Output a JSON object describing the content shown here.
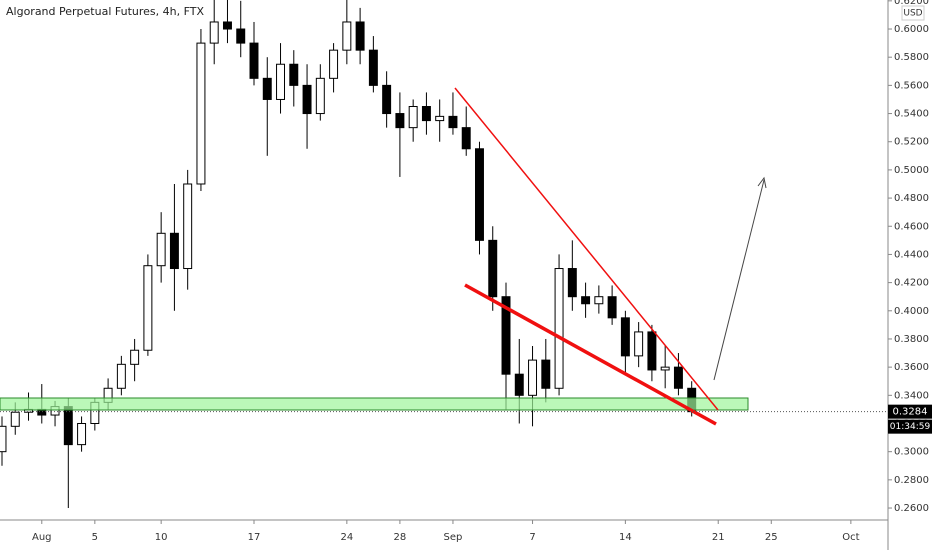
{
  "chart_data": {
    "type": "candlestick",
    "title": "Algorand Perpetual Futures, 4h, FTX",
    "currency": "USD",
    "x": [
      0,
      1,
      2,
      3,
      4,
      5,
      6,
      7,
      8,
      9,
      10,
      11,
      12,
      13,
      14,
      15,
      16,
      17,
      18,
      19,
      20,
      21,
      22,
      23,
      24,
      25,
      26,
      27,
      28,
      29,
      30,
      31,
      32,
      33,
      34,
      35,
      36,
      37,
      38,
      39,
      40,
      41,
      42,
      43,
      44,
      45,
      46,
      47,
      48,
      49,
      50,
      51,
      52
    ],
    "open": [
      0.3,
      0.318,
      0.328,
      0.33,
      0.326,
      0.332,
      0.305,
      0.32,
      0.335,
      0.345,
      0.362,
      0.372,
      0.432,
      0.455,
      0.43,
      0.49,
      0.59,
      0.605,
      0.6,
      0.59,
      0.565,
      0.55,
      0.575,
      0.56,
      0.54,
      0.565,
      0.585,
      0.605,
      0.585,
      0.56,
      0.54,
      0.53,
      0.545,
      0.535,
      0.538,
      0.53,
      0.515,
      0.45,
      0.41,
      0.355,
      0.34,
      0.365,
      0.345,
      0.43,
      0.41,
      0.405,
      0.41,
      0.395,
      0.368,
      0.385,
      0.358,
      0.36,
      0.345
    ],
    "high": [
      0.325,
      0.335,
      0.342,
      0.348,
      0.336,
      0.338,
      0.325,
      0.338,
      0.352,
      0.368,
      0.38,
      0.44,
      0.47,
      0.49,
      0.5,
      0.6,
      0.622,
      0.622,
      0.62,
      0.605,
      0.58,
      0.59,
      0.585,
      0.575,
      0.575,
      0.59,
      0.622,
      0.615,
      0.595,
      0.57,
      0.555,
      0.55,
      0.555,
      0.55,
      0.555,
      0.545,
      0.52,
      0.46,
      0.42,
      0.38,
      0.375,
      0.38,
      0.44,
      0.45,
      0.42,
      0.418,
      0.418,
      0.4,
      0.392,
      0.39,
      0.375,
      0.37,
      0.35
    ],
    "low": [
      0.29,
      0.312,
      0.322,
      0.32,
      0.318,
      0.26,
      0.3,
      0.315,
      0.33,
      0.34,
      0.35,
      0.368,
      0.42,
      0.4,
      0.415,
      0.485,
      0.575,
      0.59,
      0.58,
      0.56,
      0.51,
      0.54,
      0.545,
      0.515,
      0.535,
      0.555,
      0.575,
      0.575,
      0.555,
      0.53,
      0.495,
      0.52,
      0.525,
      0.52,
      0.525,
      0.51,
      0.44,
      0.4,
      0.33,
      0.32,
      0.318,
      0.335,
      0.34,
      0.4,
      0.395,
      0.398,
      0.39,
      0.355,
      0.36,
      0.35,
      0.345,
      0.34,
      0.325
    ],
    "close": [
      0.318,
      0.328,
      0.33,
      0.326,
      0.332,
      0.305,
      0.32,
      0.335,
      0.345,
      0.362,
      0.372,
      0.432,
      0.455,
      0.43,
      0.49,
      0.59,
      0.605,
      0.6,
      0.59,
      0.565,
      0.55,
      0.575,
      0.56,
      0.54,
      0.565,
      0.585,
      0.605,
      0.585,
      0.56,
      0.54,
      0.53,
      0.545,
      0.535,
      0.538,
      0.53,
      0.515,
      0.45,
      0.41,
      0.355,
      0.34,
      0.365,
      0.345,
      0.43,
      0.41,
      0.405,
      0.41,
      0.395,
      0.368,
      0.385,
      0.358,
      0.36,
      0.345,
      0.3284
    ],
    "xlim": [
      -0.15,
      66.8
    ],
    "xticks": [
      {
        "value": 3,
        "label": "Aug"
      },
      {
        "value": 7,
        "label": "5"
      },
      {
        "value": 12,
        "label": "10"
      },
      {
        "value": 19,
        "label": "17"
      },
      {
        "value": 26,
        "label": "24"
      },
      {
        "value": 30,
        "label": "28"
      },
      {
        "value": 34,
        "label": "Sep"
      },
      {
        "value": 40,
        "label": "7"
      },
      {
        "value": 47,
        "label": "14"
      },
      {
        "value": 54,
        "label": "21"
      },
      {
        "value": 58,
        "label": "25"
      },
      {
        "value": 64,
        "label": "Oct"
      }
    ],
    "ylim": [
      0.2515,
      0.6206
    ],
    "yticks": [
      {
        "value": 0.26,
        "label": "0.2600"
      },
      {
        "value": 0.28,
        "label": "0.2800"
      },
      {
        "value": 0.3,
        "label": "0.3000"
      },
      {
        "value": 0.32,
        "label": "0.3200"
      },
      {
        "value": 0.34,
        "label": "0.3400"
      },
      {
        "value": 0.36,
        "label": "0.3600"
      },
      {
        "value": 0.38,
        "label": "0.3800"
      },
      {
        "value": 0.4,
        "label": "0.4000"
      },
      {
        "value": 0.42,
        "label": "0.4200"
      },
      {
        "value": 0.44,
        "label": "0.4400"
      },
      {
        "value": 0.46,
        "label": "0.4600"
      },
      {
        "value": 0.48,
        "label": "0.4800"
      },
      {
        "value": 0.5,
        "label": "0.5000"
      },
      {
        "value": 0.52,
        "label": "0.5200"
      },
      {
        "value": 0.54,
        "label": "0.5400"
      },
      {
        "value": 0.56,
        "label": "0.5600"
      },
      {
        "value": 0.58,
        "label": "0.5800"
      },
      {
        "value": 0.6,
        "label": "0.6000"
      },
      {
        "value": 0.62,
        "label": "0.6200"
      }
    ],
    "last_price": 0.3284,
    "countdown": "01:34:59",
    "up_color": "#ffffff",
    "down_color": "#000000"
  }
}
